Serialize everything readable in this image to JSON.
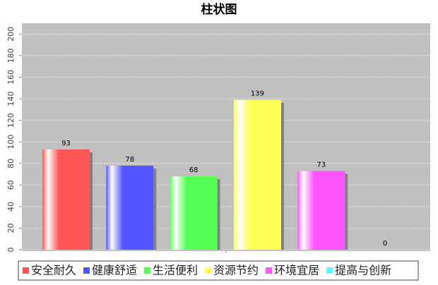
{
  "chart_data": {
    "type": "bar",
    "title": "柱状图",
    "categories": [
      "安全耐久",
      "健康舒适",
      "生活便利",
      "资源节约",
      "环境宜居",
      "提高与创新"
    ],
    "values": [
      93,
      78,
      68,
      139,
      73,
      0
    ],
    "colors": [
      "#ff5555",
      "#5555ff",
      "#55ff55",
      "#ffff55",
      "#ff55ff",
      "#55ffff"
    ],
    "ylim": [
      0,
      210
    ],
    "yticks": [
      0,
      20,
      40,
      60,
      80,
      100,
      120,
      140,
      160,
      180,
      200
    ],
    "grid": true
  }
}
